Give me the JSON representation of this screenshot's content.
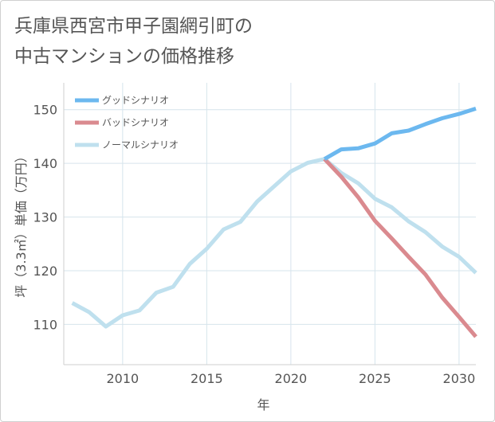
{
  "title_lines": [
    "兵庫県西宮市甲子園網引町の",
    "中古マンションの価格推移"
  ],
  "chart_data": {
    "type": "line",
    "title": "兵庫県西宮市甲子園網引町の中古マンションの価格推移",
    "xlabel": "年",
    "ylabel": "坪（3.3㎡）単価（万円）",
    "xlim": [
      2006.5,
      2031
    ],
    "ylim": [
      102.5,
      155
    ],
    "x_ticks": [
      2010,
      2015,
      2020,
      2025,
      2030
    ],
    "y_ticks": [
      110,
      120,
      130,
      140,
      150
    ],
    "grid": true,
    "legend_position": "top-left",
    "series": [
      {
        "name": "グッドシナリオ",
        "color": "#6cb8ef",
        "x": [
          2022,
          2023,
          2024,
          2025,
          2026,
          2027,
          2028,
          2029,
          2030,
          2031
        ],
        "y": [
          140.8,
          142.6,
          142.8,
          143.7,
          145.6,
          146.1,
          147.3,
          148.4,
          149.2,
          150.2
        ]
      },
      {
        "name": "バッドシナリオ",
        "color": "#da8a8f",
        "x": [
          2022,
          2023,
          2024,
          2025,
          2026,
          2027,
          2028,
          2029,
          2030,
          2031
        ],
        "y": [
          140.8,
          137.5,
          133.7,
          129.3,
          126.0,
          122.6,
          119.3,
          115.0,
          111.4,
          107.7
        ]
      },
      {
        "name": "ノーマルシナリオ",
        "color": "#bfe0ee",
        "x": [
          2007,
          2008,
          2009,
          2010,
          2011,
          2012,
          2013,
          2014,
          2015,
          2016,
          2017,
          2018,
          2019,
          2020,
          2021,
          2022,
          2023,
          2024,
          2025,
          2026,
          2027,
          2028,
          2029,
          2030,
          2031
        ],
        "y": [
          114.0,
          112.3,
          109.6,
          111.7,
          112.6,
          115.9,
          117.0,
          121.3,
          124.1,
          127.7,
          129.1,
          132.9,
          135.7,
          138.5,
          140.1,
          140.8,
          138.2,
          136.3,
          133.4,
          131.8,
          129.2,
          127.2,
          124.5,
          122.6,
          119.6
        ]
      }
    ]
  }
}
